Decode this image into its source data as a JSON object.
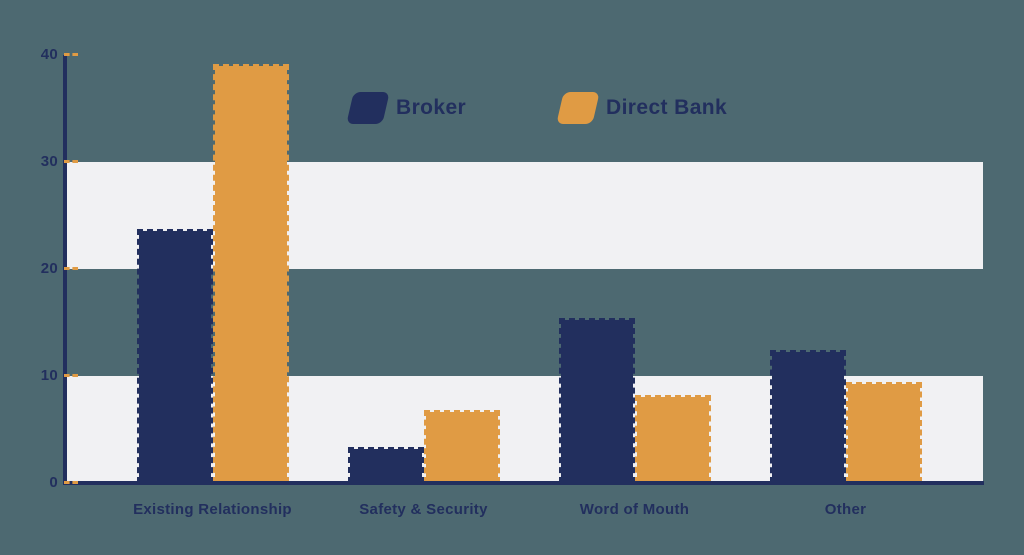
{
  "chart_data": {
    "type": "bar",
    "title": "",
    "categories": [
      "Existing Relationship",
      "Safety & Security",
      "Word of Mouth",
      "Other"
    ],
    "series": [
      {
        "name": "Broker",
        "color": "#222F5E",
        "values": [
          23.7,
          3.4,
          15.4,
          12.4
        ]
      },
      {
        "name": "Direct Bank",
        "color": "#E09B44",
        "values": [
          39.2,
          6.8,
          8.2,
          9.4
        ]
      }
    ],
    "xlabel": "",
    "ylabel": "",
    "ylim": [
      0,
      40
    ],
    "yticks": [
      0,
      10,
      20,
      30,
      40
    ],
    "shaded_bands": [
      [
        0,
        10
      ],
      [
        20,
        30
      ]
    ],
    "grid": "alternating horizontal shaded bands, no gridlines",
    "legend_position": "top-center",
    "colors": {
      "background": "#4D6971",
      "band": "#F1F1F3",
      "axis": "#222F5E",
      "tick_dash": "#E09B44",
      "broker_bar": "#222F5E",
      "direct_bank_bar": "#E09B44"
    }
  }
}
